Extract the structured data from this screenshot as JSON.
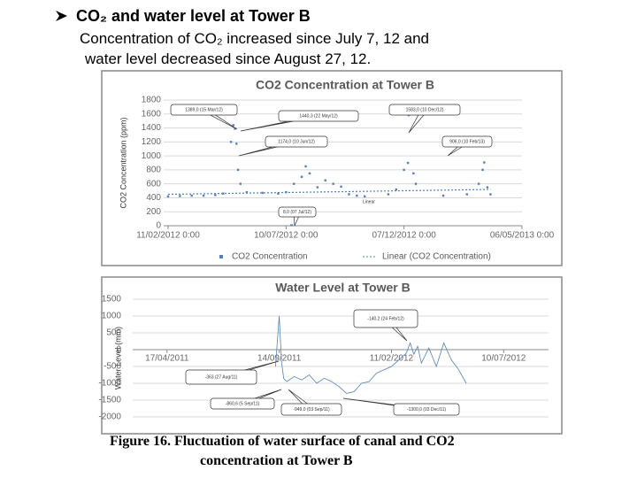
{
  "header": {
    "title": "CO₂ and water level at Tower B",
    "lines": [
      "Concentration of CO₂ increased since July 7, 12 and",
      "water level decreased since August 27, 12."
    ]
  },
  "caption": [
    "Figure 16.  Fluctuation of water surface of canal and CO2",
    "concentration at Tower B"
  ],
  "chart_data": [
    {
      "type": "scatter",
      "title": "CO2 Concentration at Tower B",
      "y_label": "CO2 Concentration (ppm)",
      "ylim": [
        0,
        1800
      ],
      "yticks": [
        0,
        200,
        400,
        600,
        800,
        1000,
        1200,
        1400,
        1600,
        1800
      ],
      "xlim": [
        40950,
        41400
      ],
      "xticks": [
        {
          "value": 40950,
          "label": "11/02/2012 0:00"
        },
        {
          "value": 41100,
          "label": "10/07/2012 0:00"
        },
        {
          "value": 41250,
          "label": "07/12/2012 0:00"
        },
        {
          "value": 41400,
          "label": "06/05/2013 0:00"
        }
      ],
      "grid": true,
      "legend": "bottom",
      "series": [
        {
          "name": "CO2 Concentration",
          "color": "#4f81bd",
          "x": [
            40950,
            40965,
            40980,
            40995,
            41010,
            41020,
            41030,
            41033,
            41035,
            41037,
            41039,
            41042,
            41050,
            41070,
            41090,
            41100,
            41107,
            41110,
            41120,
            41125,
            41130,
            41140,
            41150,
            41160,
            41170,
            41180,
            41190,
            41200,
            41230,
            41240,
            41250,
            41255,
            41256,
            41262,
            41265,
            41300,
            41330,
            41345,
            41350,
            41352,
            41356,
            41360
          ],
          "values": [
            420,
            425,
            430,
            430,
            440,
            460,
            1200,
            1440,
            1389,
            1174,
            800,
            600,
            480,
            470,
            460,
            480,
            8,
            600,
            700,
            850,
            750,
            550,
            650,
            600,
            560,
            450,
            430,
            420,
            450,
            520,
            800,
            900,
            1583,
            750,
            600,
            430,
            450,
            600,
            800,
            906,
            550,
            450
          ]
        },
        {
          "name": "Linear (CO2 Concentration)",
          "color": "#4f81bd",
          "type": "line",
          "x": [
            40950,
            41360
          ],
          "values": [
            450,
            520
          ]
        }
      ],
      "annotations": [
        "1389,0 (15 Mar/12)",
        "1440,3 (22 May/12)",
        "1583,0 (10 Dec/12)",
        "1174,0 (10 Jun/12)",
        "906,0 (10 Feb/13)",
        "8,0 (07 Jul/12)",
        "Linear"
      ]
    },
    {
      "type": "line",
      "title": "Water Level at Tower B",
      "y_label": "Water Level (mm)",
      "ylim": [
        -2000,
        1500
      ],
      "yticks": [
        -2000,
        -1500,
        -1000,
        -500,
        0,
        500,
        1000,
        1500
      ],
      "xlim": [
        40610,
        41160
      ],
      "xticks": [
        {
          "value": 40650,
          "label": "17/04/2011"
        },
        {
          "value": 40800,
          "label": "14/09/2011"
        },
        {
          "value": 40950,
          "label": "11/02/2012"
        },
        {
          "value": 41100,
          "label": "10/07/2012"
        }
      ],
      "grid": true,
      "series": [
        {
          "color": "#4f81bd",
          "x": [
            40795,
            40800,
            40803,
            40806,
            40810,
            40820,
            40830,
            40840,
            40850,
            40860,
            40870,
            40880,
            40890,
            40900,
            40910,
            40920,
            40930,
            40940,
            40950,
            40960,
            40970,
            40975,
            40980,
            40985,
            40990,
            41000,
            41010,
            41020,
            41030,
            41040,
            41050
          ],
          "values": [
            -500,
            1000,
            -363,
            -860.6,
            -949,
            -800,
            -900,
            -750,
            -1000,
            -850,
            -950,
            -1100,
            -1300,
            -1250,
            -1000,
            -950,
            -700,
            -600,
            -500,
            -300,
            -100,
            200,
            -140.2,
            100,
            -400,
            50,
            -500,
            200,
            -300,
            -600,
            -1000
          ]
        }
      ],
      "annotations": [
        "-140,2 (24 Feb/12)",
        "-363 (27 Aug/11)",
        "-860,6 (5 Sep/11)",
        "-949,0 (03 Sep/11)",
        "-1300,0 (03 Dec/11)"
      ]
    }
  ]
}
